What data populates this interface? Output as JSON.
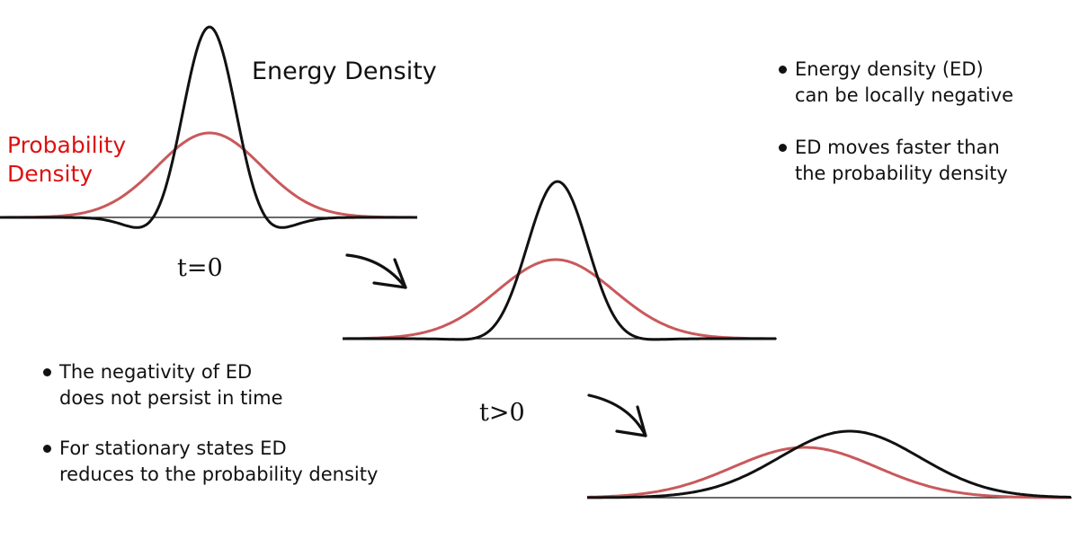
{
  "labels": {
    "energy_density": "Energy Density",
    "probability_density_line1": "Probability",
    "probability_density_line2": "Density",
    "time_zero": "t=0",
    "time_later": "t>0"
  },
  "notes": [
    {
      "line1": "Energy density (ED)",
      "line2": "can be locally negative"
    },
    {
      "line1": "ED moves faster than",
      "line2": "the probability density"
    },
    {
      "line1": "The negativity of ED",
      "line2": "does not persist in time"
    },
    {
      "line1": "For stationary states ED",
      "line2": "reduces to the probability density"
    }
  ],
  "colors": {
    "energy_density": "#111111",
    "probability_density": "#c9595b",
    "label_red": "#dd1111"
  },
  "icons": [
    "curved-arrow-icon",
    "curved-arrow-icon",
    "bullet-icon"
  ]
}
